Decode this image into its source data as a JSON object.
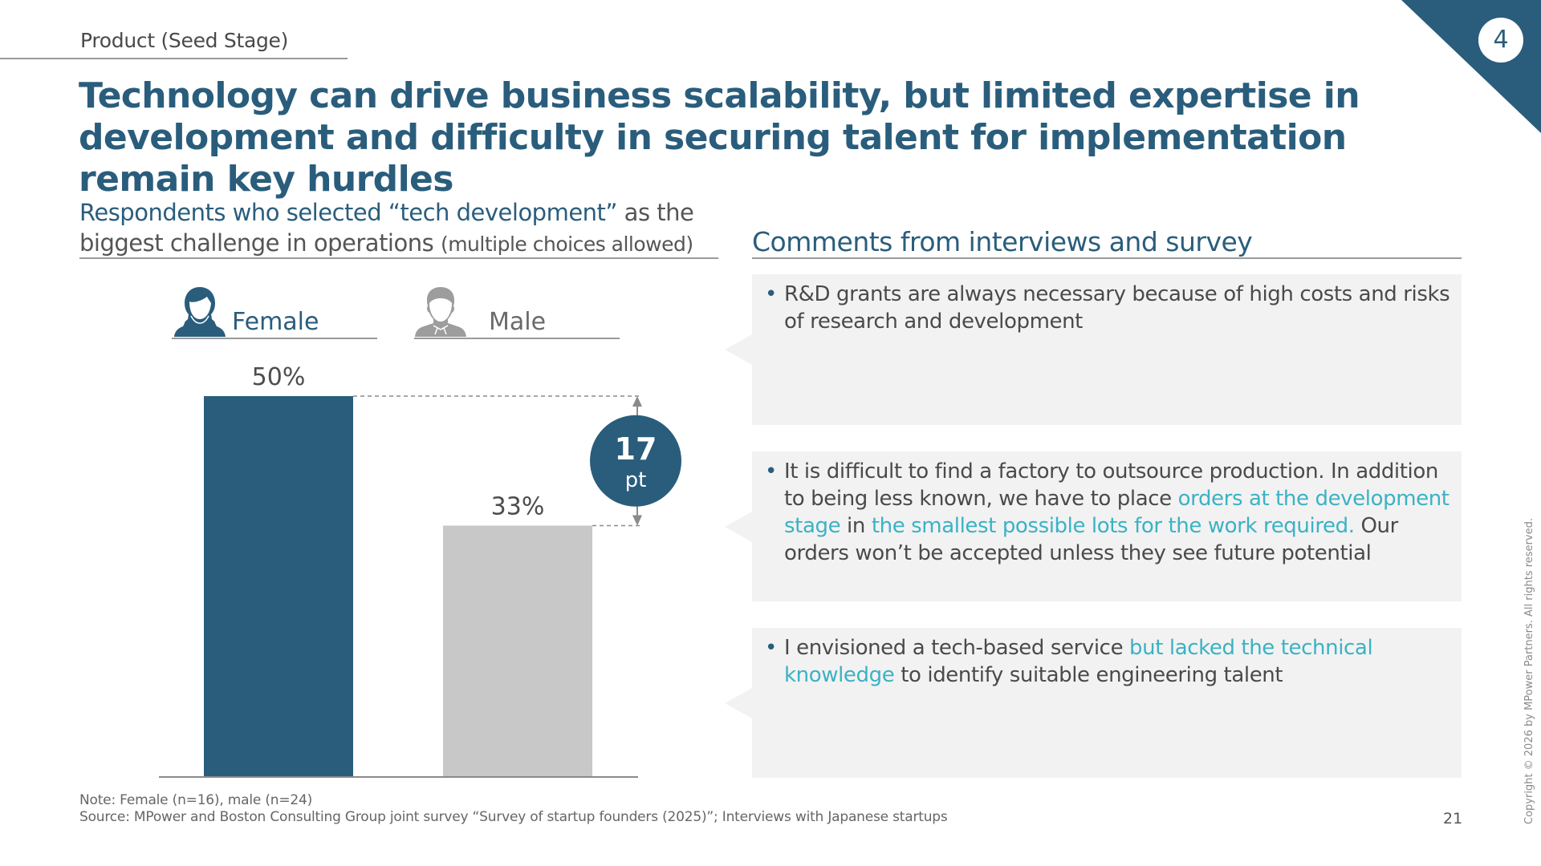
{
  "header": {
    "section": "Product (Seed Stage)",
    "badge_number": "4",
    "title": "Technology can drive business scalability, but limited expertise in development and difficulty in securing talent for implementation remain key hurdles"
  },
  "chart_panel": {
    "heading_blue": "Respondents who selected “tech development”",
    "heading_gray": " as the biggest challenge in operations ",
    "heading_small": "(multiple choices allowed)",
    "legend": [
      {
        "label": "Female",
        "icon": "female-user-icon",
        "color": "#2a5d7c"
      },
      {
        "label": "Male",
        "icon": "male-user-icon",
        "color": "#9d9d9d"
      }
    ]
  },
  "chart_data": {
    "type": "bar",
    "title": "Respondents who selected “tech development” as the biggest challenge in operations (multiple choices allowed)",
    "categories": [
      "Female",
      "Male"
    ],
    "values": [
      50,
      33
    ],
    "value_labels": [
      "50%",
      "33%"
    ],
    "colors": [
      "#2a5d7c",
      "#c8c8c8"
    ],
    "unit": "%",
    "ylim": [
      0,
      50
    ],
    "grid": false,
    "difference": {
      "value": "17",
      "unit": "pt",
      "color": "#2a5d7c"
    },
    "xlabel": "",
    "ylabel": ""
  },
  "comments": {
    "heading": "Comments from interviews and survey",
    "items": [
      {
        "segments": [
          {
            "text": "R&D grants are always necessary because of high costs and risks of research and development",
            "highlight": false
          }
        ]
      },
      {
        "segments": [
          {
            "text": "It is difficult to find a factory to outsource production. In addition to being less known, we have to place ",
            "highlight": false
          },
          {
            "text": "orders at the development stage",
            "highlight": true
          },
          {
            "text": " in ",
            "highlight": false
          },
          {
            "text": "the smallest possible lots for the work required.",
            "highlight": true
          },
          {
            "text": " Our orders won’t be accepted unless they see future potential",
            "highlight": false
          }
        ]
      },
      {
        "segments": [
          {
            "text": "I envisioned a tech-based service ",
            "highlight": false
          },
          {
            "text": "but lacked the technical knowledge",
            "highlight": true
          },
          {
            "text": " to identify suitable engineering talent",
            "highlight": false
          }
        ]
      }
    ]
  },
  "footer": {
    "note": "Note: Female (n=16), male (n=24)",
    "source": "Source: MPower and Boston Consulting Group joint survey “Survey of startup founders (2025)”; Interviews with Japanese startups",
    "page_number": "21",
    "copyright": "Copyright © 2026 by MPower Partners. All rights reserved."
  }
}
